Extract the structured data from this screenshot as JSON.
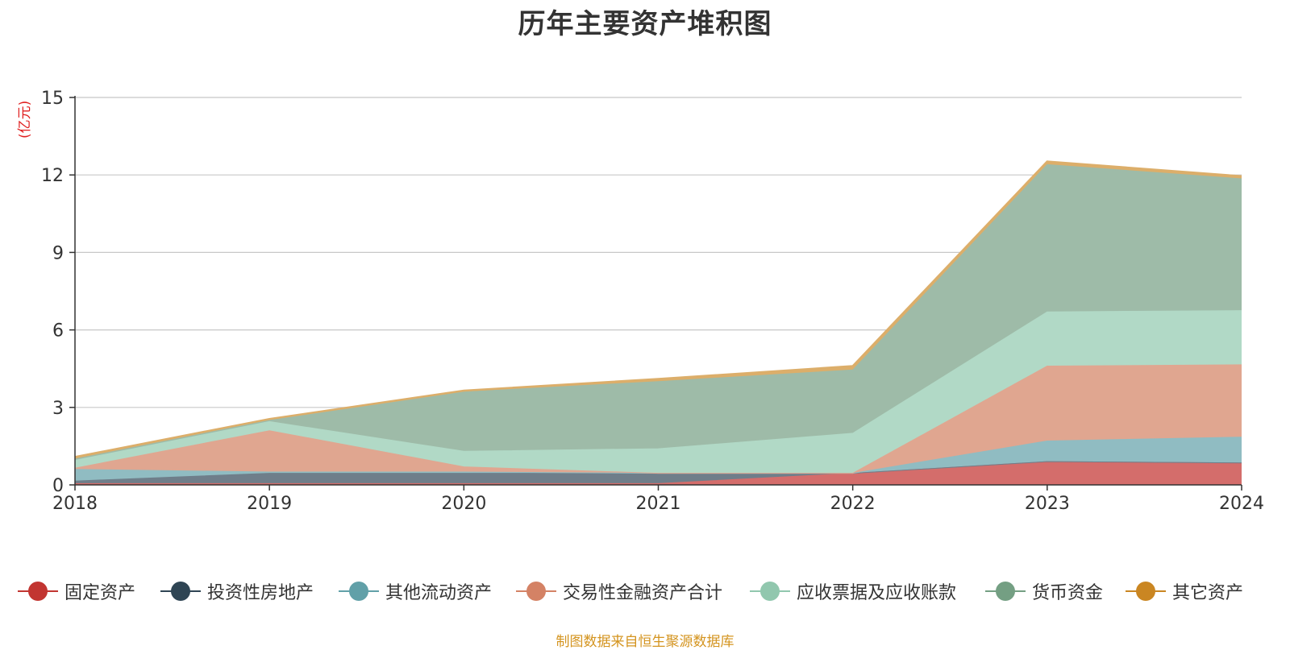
{
  "chart_data": {
    "type": "area",
    "stacked": true,
    "title": "历年主要资产堆积图",
    "unit_label": "(亿元)",
    "source_note": "制图数据来自恒生聚源数据库",
    "x": [
      "2018",
      "2019",
      "2020",
      "2021",
      "2022",
      "2023",
      "2024"
    ],
    "ylim": [
      0,
      15
    ],
    "yticks": [
      0,
      3,
      6,
      9,
      12,
      15
    ],
    "grid": true,
    "legend_position": "bottom",
    "series": [
      {
        "name": "固定资产",
        "color": "#c23531",
        "fill": "#d46d6b",
        "values": [
          0.05,
          0.05,
          0.05,
          0.05,
          0.45,
          0.9,
          0.85
        ]
      },
      {
        "name": "投资性房地产",
        "color": "#2f4554",
        "fill": "#6f7e8a",
        "values": [
          0.1,
          0.4,
          0.4,
          0.4,
          0.0,
          0.0,
          0.0
        ]
      },
      {
        "name": "其他流动资产",
        "color": "#61a0a8",
        "fill": "#90bcc2",
        "values": [
          0.45,
          0.05,
          0.05,
          0.0,
          0.0,
          0.8,
          1.0
        ]
      },
      {
        "name": "交易性金融资产合计",
        "color": "#d48265",
        "fill": "#e0a690",
        "values": [
          0.05,
          1.6,
          0.2,
          0.0,
          0.0,
          2.9,
          2.8
        ]
      },
      {
        "name": "应收票据及应收账款",
        "color": "#91c7ae",
        "fill": "#b1d9c6",
        "values": [
          0.3,
          0.35,
          0.6,
          0.95,
          1.55,
          2.1,
          2.1
        ]
      },
      {
        "name": "货币资金",
        "color": "#749f83",
        "fill": "#9ebba8",
        "values": [
          0.05,
          0.05,
          2.3,
          2.6,
          2.45,
          5.7,
          5.1
        ]
      },
      {
        "name": "其它资产",
        "color": "#ca8622",
        "fill": "#dcae6a",
        "values": [
          0.08,
          0.05,
          0.05,
          0.1,
          0.15,
          0.12,
          0.1
        ]
      }
    ]
  }
}
